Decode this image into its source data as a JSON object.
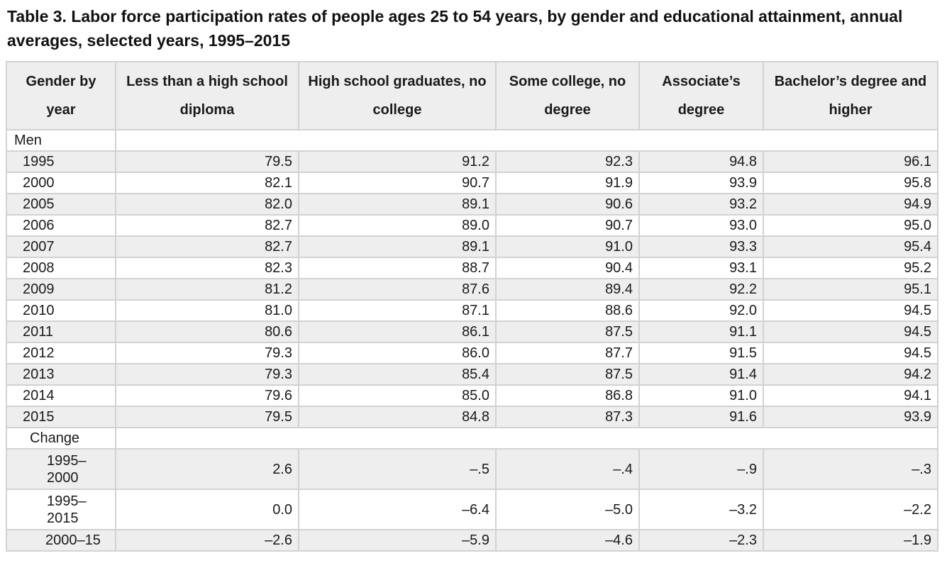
{
  "title": "Table 3. Labor force participation rates of people ages 25 to 54 years, by gender and educational attainment, annual averages, selected years, 1995–2015",
  "headers": [
    "Gender by year",
    "Less than a high school diploma",
    "High school graduates, no college",
    "Some college, no degree",
    "Associate’s degree",
    "Bachelor’s degree and higher"
  ],
  "sections": {
    "men": "Men",
    "change": "Change"
  },
  "rows": [
    {
      "label": "1995",
      "values": [
        "79.5",
        "91.2",
        "92.3",
        "94.8",
        "96.1"
      ]
    },
    {
      "label": "2000",
      "values": [
        "82.1",
        "90.7",
        "91.9",
        "93.9",
        "95.8"
      ]
    },
    {
      "label": "2005",
      "values": [
        "82.0",
        "89.1",
        "90.6",
        "93.2",
        "94.9"
      ]
    },
    {
      "label": "2006",
      "values": [
        "82.7",
        "89.0",
        "90.7",
        "93.0",
        "95.0"
      ]
    },
    {
      "label": "2007",
      "values": [
        "82.7",
        "89.1",
        "91.0",
        "93.3",
        "95.4"
      ]
    },
    {
      "label": "2008",
      "values": [
        "82.3",
        "88.7",
        "90.4",
        "93.1",
        "95.2"
      ]
    },
    {
      "label": "2009",
      "values": [
        "81.2",
        "87.6",
        "89.4",
        "92.2",
        "95.1"
      ]
    },
    {
      "label": "2010",
      "values": [
        "81.0",
        "87.1",
        "88.6",
        "92.0",
        "94.5"
      ]
    },
    {
      "label": "2011",
      "values": [
        "80.6",
        "86.1",
        "87.5",
        "91.1",
        "94.5"
      ]
    },
    {
      "label": "2012",
      "values": [
        "79.3",
        "86.0",
        "87.7",
        "91.5",
        "94.5"
      ]
    },
    {
      "label": "2013",
      "values": [
        "79.3",
        "85.4",
        "87.5",
        "91.4",
        "94.2"
      ]
    },
    {
      "label": "2014",
      "values": [
        "79.6",
        "85.0",
        "86.8",
        "91.0",
        "94.1"
      ]
    },
    {
      "label": "2015",
      "values": [
        "79.5",
        "84.8",
        "87.3",
        "91.6",
        "93.9"
      ]
    }
  ],
  "change_rows": [
    {
      "label": "1995–2000",
      "values": [
        "2.6",
        "–.5",
        "–.4",
        "–.9",
        "–.3"
      ]
    },
    {
      "label": "1995–2015",
      "values": [
        "0.0",
        "–6.4",
        "–5.0",
        "–3.2",
        "–2.2"
      ]
    },
    {
      "label": "2000–15",
      "values": [
        "–2.6",
        "–5.9",
        "–4.6",
        "–2.3",
        "–1.9"
      ]
    }
  ]
}
